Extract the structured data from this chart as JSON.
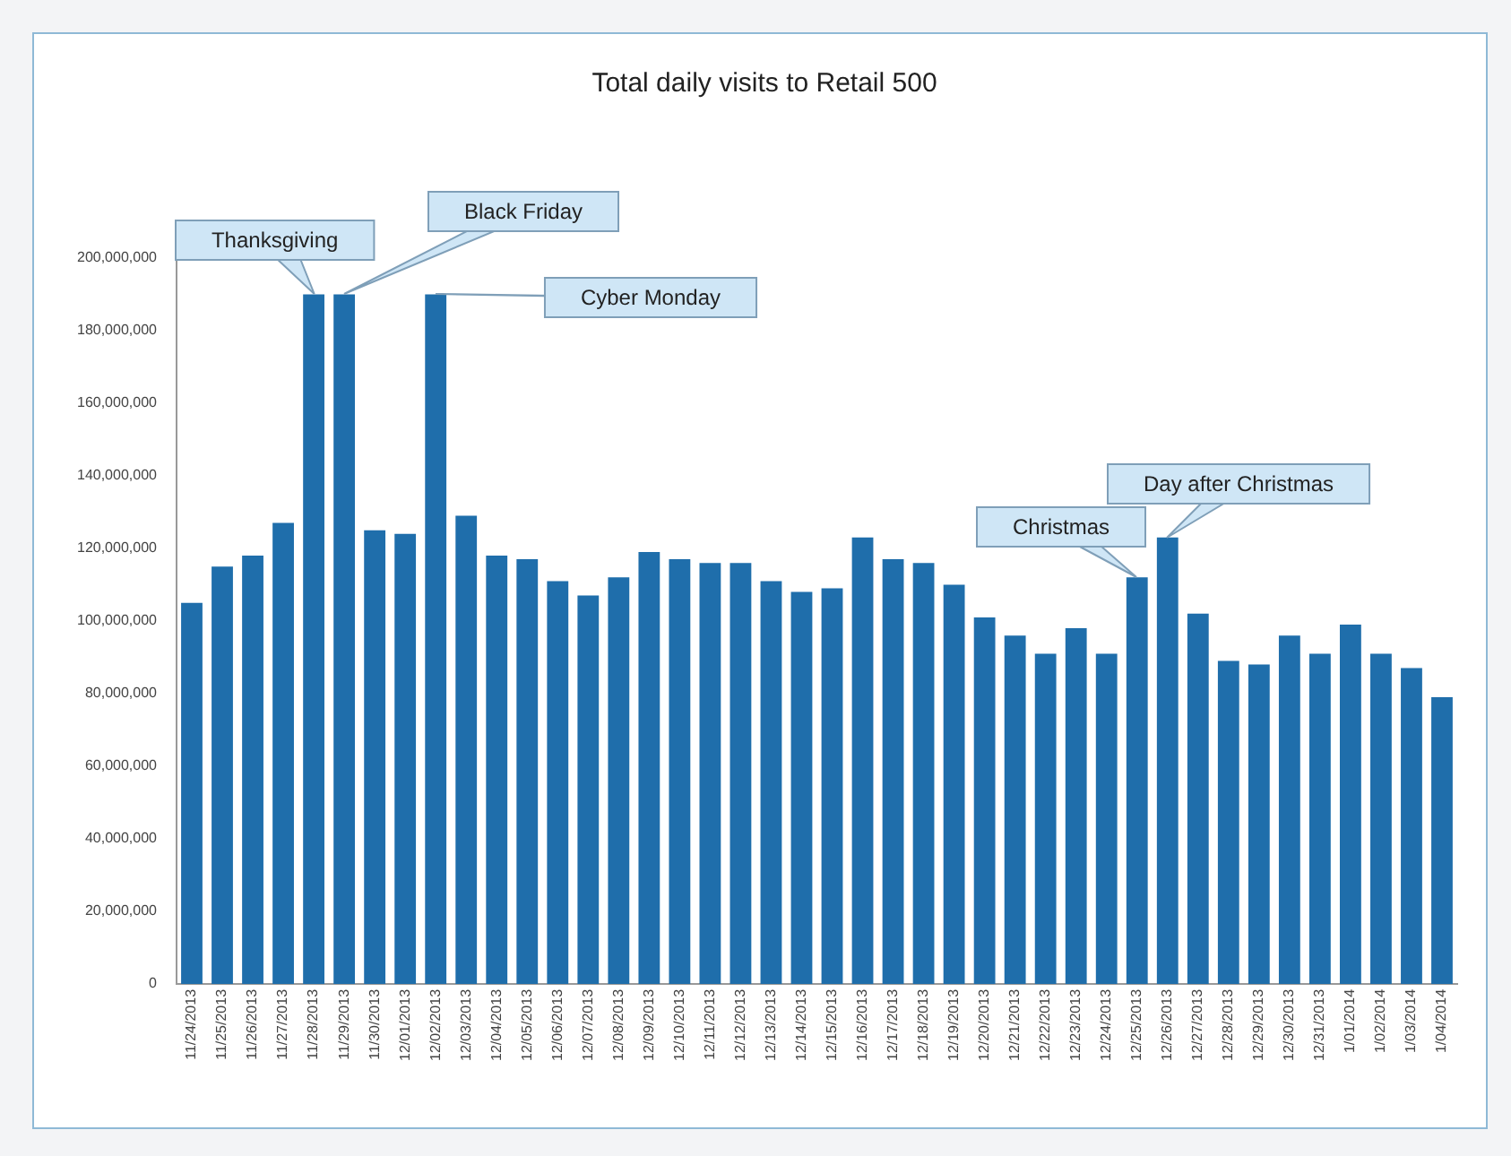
{
  "chart_data": {
    "type": "bar",
    "title": "Total daily visits to Retail 500",
    "categories": [
      "11/24/2013",
      "11/25/2013",
      "11/26/2013",
      "11/27/2013",
      "11/28/2013",
      "11/29/2013",
      "11/30/2013",
      "12/01/2013",
      "12/02/2013",
      "12/03/2013",
      "12/04/2013",
      "12/05/2013",
      "12/06/2013",
      "12/07/2013",
      "12/08/2013",
      "12/09/2013",
      "12/10/2013",
      "12/11/2013",
      "12/12/2013",
      "12/13/2013",
      "12/14/2013",
      "12/15/2013",
      "12/16/2013",
      "12/17/2013",
      "12/18/2013",
      "12/19/2013",
      "12/20/2013",
      "12/21/2013",
      "12/22/2013",
      "12/23/2013",
      "12/24/2013",
      "12/25/2013",
      "12/26/2013",
      "12/27/2013",
      "12/28/2013",
      "12/29/2013",
      "12/30/2013",
      "12/31/2013",
      "1/01/2014",
      "1/02/2014",
      "1/03/2014",
      "1/04/2014"
    ],
    "values": [
      105000000,
      115000000,
      118000000,
      127000000,
      190000000,
      190000000,
      125000000,
      124000000,
      190000000,
      129000000,
      118000000,
      117000000,
      111000000,
      107000000,
      112000000,
      119000000,
      117000000,
      116000000,
      116000000,
      111000000,
      108000000,
      109000000,
      123000000,
      117000000,
      116000000,
      110000000,
      101000000,
      96000000,
      91000000,
      98000000,
      91000000,
      112000000,
      123000000,
      102000000,
      89000000,
      88000000,
      96000000,
      91000000,
      99000000,
      91000000,
      87000000,
      79000000
    ],
    "color": "#1f6eab",
    "ylim": [
      0,
      200000000
    ],
    "yticks": [
      {
        "value": 0,
        "label": "0"
      },
      {
        "value": 20000000,
        "label": "20,000,000"
      },
      {
        "value": 40000000,
        "label": "40,000,000"
      },
      {
        "value": 60000000,
        "label": "60,000,000"
      },
      {
        "value": 80000000,
        "label": "80,000,000"
      },
      {
        "value": 100000000,
        "label": "100,000,000"
      },
      {
        "value": 120000000,
        "label": "120,000,000"
      },
      {
        "value": 140000000,
        "label": "140,000,000"
      },
      {
        "value": 160000000,
        "label": "160,000,000"
      },
      {
        "value": 180000000,
        "label": "180,000,000"
      },
      {
        "value": 200000000,
        "label": "200,000,000"
      }
    ],
    "grid": false,
    "legend": false,
    "annotations": [
      {
        "text": "Thanksgiving",
        "x": "11/28/2013",
        "y": 190000000
      },
      {
        "text": "Black Friday",
        "x": "11/29/2013",
        "y": 190000000
      },
      {
        "text": "Cyber Monday",
        "x": "12/02/2013",
        "y": 190000000
      },
      {
        "text": "Christmas",
        "x": "12/25/2013",
        "y": 112000000
      },
      {
        "text": "Day after Christmas",
        "x": "12/26/2013",
        "y": 123000000
      }
    ]
  }
}
